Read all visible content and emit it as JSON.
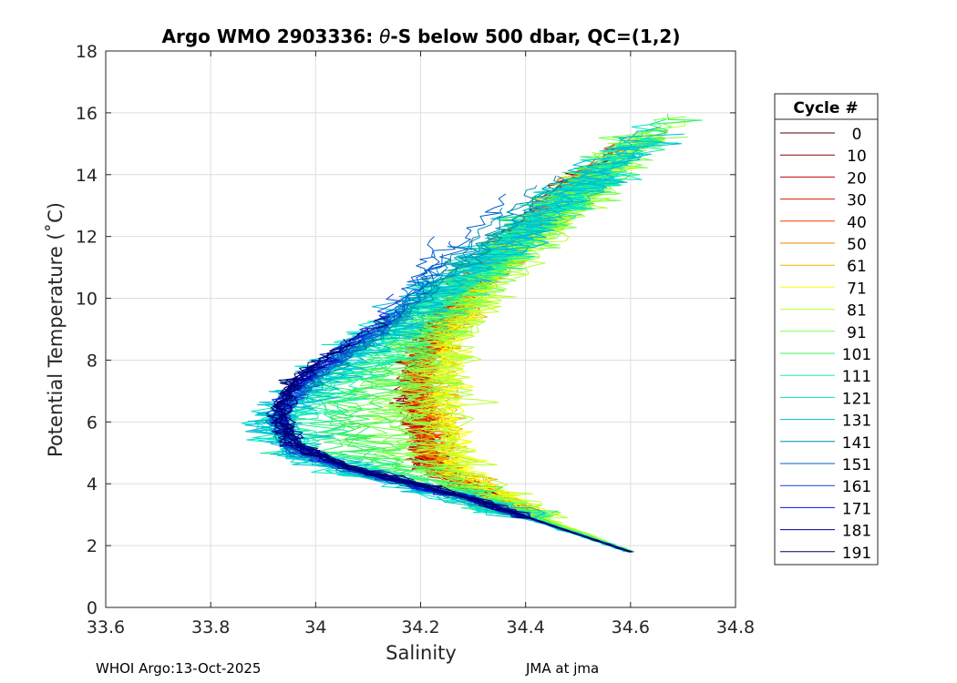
{
  "chart_data": {
    "type": "line",
    "title_parts": {
      "prefix": "Argo WMO 2903336: ",
      "symbol": "θ",
      "suffix": "-S below 500 dbar,  QC=(1,2)"
    },
    "xlabel": "Salinity",
    "ylabel": "Potential Temperature (˚C)",
    "xlim": [
      33.6,
      34.8
    ],
    "ylim": [
      0,
      18
    ],
    "xticks": [
      33.6,
      33.8,
      34.0,
      34.2,
      34.4,
      34.6,
      34.8
    ],
    "xtick_labels": [
      "33.6",
      "33.8",
      "34",
      "34.2",
      "34.4",
      "34.6",
      "34.8"
    ],
    "yticks": [
      0,
      2,
      4,
      6,
      8,
      10,
      12,
      14,
      16,
      18
    ],
    "ytick_labels": [
      "0",
      "2",
      "4",
      "6",
      "8",
      "10",
      "12",
      "14",
      "16",
      "18"
    ],
    "grid": true,
    "legend": {
      "title": "Cycle #",
      "position": "right",
      "entries": [
        "0",
        "10",
        "20",
        "30",
        "40",
        "50",
        "61",
        "71",
        "81",
        "91",
        "101",
        "111",
        "121",
        "131",
        "141",
        "151",
        "161",
        "171",
        "181",
        "191"
      ],
      "colors": [
        "#5a0000",
        "#8c0000",
        "#bf0000",
        "#e61a00",
        "#f04000",
        "#e68a00",
        "#f0b400",
        "#ffff00",
        "#b8ff30",
        "#7aff50",
        "#3cf060",
        "#20f0a0",
        "#00e6c8",
        "#00bcd4",
        "#0090b0",
        "#0060d0",
        "#1a3cdc",
        "#0018c8",
        "#000090",
        "#00006a"
      ]
    },
    "series_model": {
      "description": "Representative θ-S profiles (salinity, potential temperature) per cycle group",
      "deep_end": [
        34.6,
        1.8
      ],
      "groups": [
        {
          "name": "cycles 0-40 (red)",
          "points": [
            [
              34.6,
              1.8
            ],
            [
              34.4,
              3.0
            ],
            [
              34.22,
              4.5
            ],
            [
              34.2,
              6.0
            ],
            [
              34.19,
              7.5
            ],
            [
              34.23,
              9.0
            ],
            [
              34.3,
              10.5
            ],
            [
              34.4,
              12.2
            ],
            [
              34.5,
              13.8
            ],
            [
              34.63,
              15.5
            ]
          ]
        },
        {
          "name": "cycles 50-71 (orange/yellow)",
          "points": [
            [
              34.6,
              1.8
            ],
            [
              34.42,
              3.0
            ],
            [
              34.28,
              4.5
            ],
            [
              34.26,
              6.0
            ],
            [
              34.25,
              7.5
            ],
            [
              34.27,
              9.0
            ],
            [
              34.33,
              10.5
            ],
            [
              34.42,
              12.0
            ],
            [
              34.55,
              14.0
            ],
            [
              34.69,
              16.05
            ]
          ]
        },
        {
          "name": "cycles 81-131 (green/cyan)",
          "points": [
            [
              34.6,
              1.8
            ],
            [
              34.35,
              3.2
            ],
            [
              34.1,
              4.3
            ],
            [
              33.95,
              5.0
            ],
            [
              33.92,
              6.0
            ],
            [
              34.0,
              7.2
            ],
            [
              34.1,
              8.5
            ],
            [
              34.2,
              9.8
            ],
            [
              34.35,
              11.5
            ],
            [
              34.5,
              13.5
            ],
            [
              34.68,
              16.0
            ]
          ]
        },
        {
          "name": "cycles 141-191 (blue)",
          "points": [
            [
              34.6,
              1.8
            ],
            [
              34.3,
              3.5
            ],
            [
              34.05,
              4.6
            ],
            [
              33.96,
              5.3
            ],
            [
              33.93,
              6.2
            ],
            [
              33.96,
              7.3
            ],
            [
              34.04,
              8.3
            ],
            [
              34.13,
              9.4
            ]
          ]
        }
      ]
    }
  },
  "footer": {
    "left": "WHOI Argo:13-Oct-2025",
    "right": "JMA at jma"
  }
}
